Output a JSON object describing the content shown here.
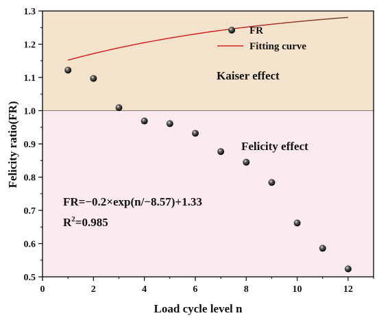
{
  "chart_data": {
    "type": "scatter",
    "xlabel": "Load cycle level n",
    "ylabel": "Felicity ratio(FR)",
    "xlim": [
      0,
      13
    ],
    "ylim": [
      0.5,
      1.3
    ],
    "x_ticks": [
      "0",
      "2",
      "4",
      "6",
      "8",
      "10",
      "12"
    ],
    "y_ticks": [
      "0.5",
      "0.6",
      "0.7",
      "0.8",
      "0.9",
      "1.0",
      "1.1",
      "1.2",
      "1.3"
    ],
    "grid": false,
    "legend_position": "top-right",
    "series": [
      {
        "name": "FR",
        "kind": "scatter",
        "marker": "sphere",
        "color": "#000000",
        "x": [
          1,
          2,
          3,
          4,
          5,
          6,
          7,
          8,
          9,
          10,
          11,
          12
        ],
        "y": [
          1.122,
          1.097,
          1.009,
          0.969,
          0.961,
          0.932,
          0.877,
          0.845,
          0.784,
          0.662,
          0.586,
          0.524
        ]
      },
      {
        "name": "Fitting curve",
        "kind": "line",
        "color": "#d62020",
        "color_end": "#6b4a2a",
        "equation": {
          "a": -0.2,
          "b": -8.57,
          "c": 1.33
        },
        "x_range": [
          1,
          12
        ]
      }
    ],
    "regions": [
      {
        "label": "Kaiser effect",
        "y_from": 1.0,
        "y_to": 1.3,
        "color": "#f3e3cd"
      },
      {
        "label": "Felicity effect",
        "y_from": 0.5,
        "y_to": 1.0,
        "color": "#fbeaf0"
      }
    ],
    "annotations": {
      "equation_text": "FR=−0.2×exp(n/−8.57)+1.33",
      "r2_prefix": "R",
      "r2_sup": "2",
      "r2_value": "=0.985"
    }
  }
}
